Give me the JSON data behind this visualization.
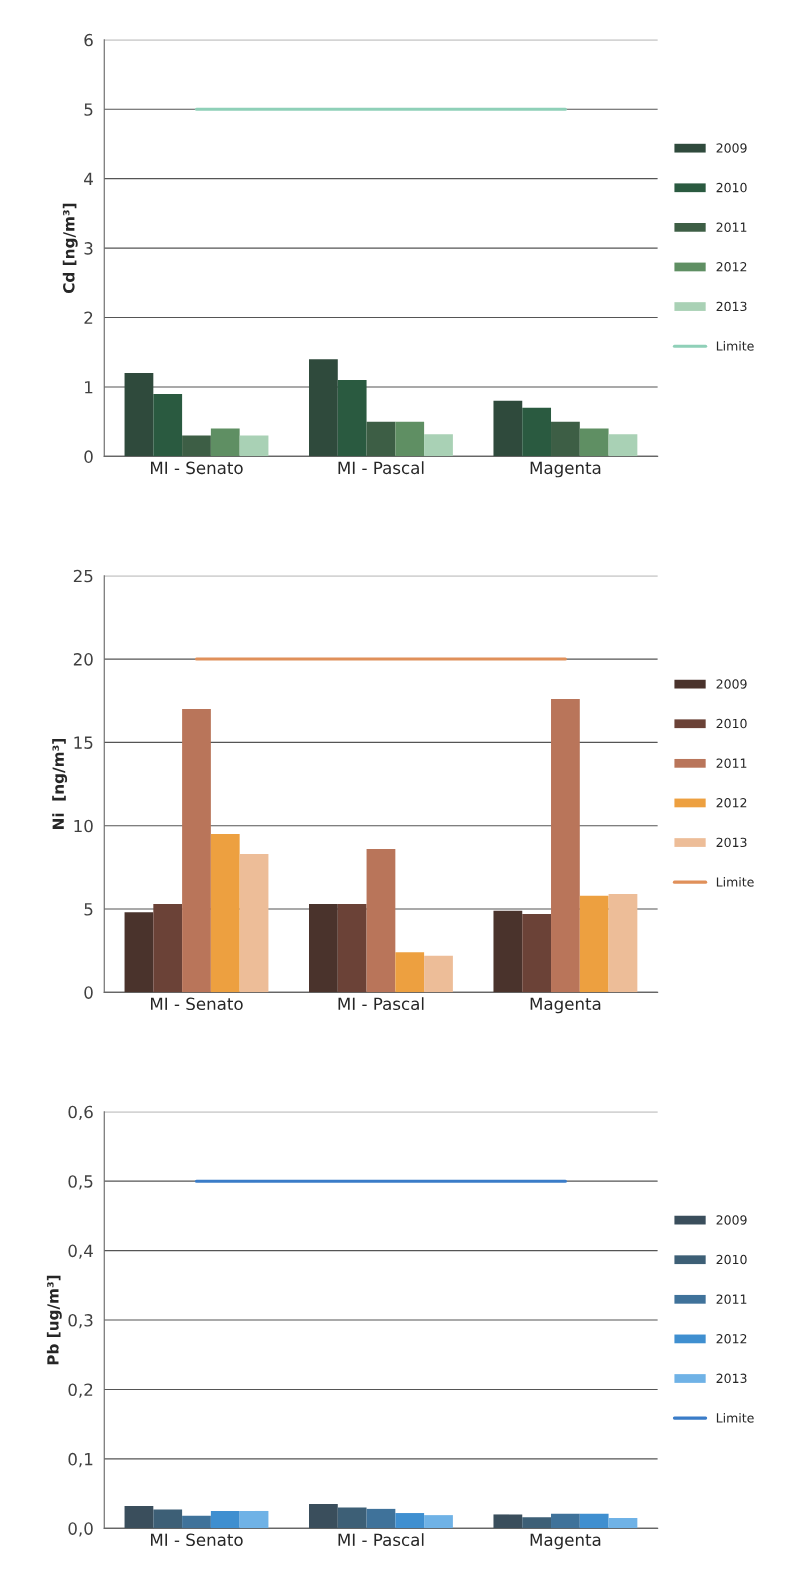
{
  "chart_data": [
    {
      "type": "bar",
      "ylabel": "Cd [ng/m³]",
      "categories": [
        "MI - Senato",
        "MI - Pascal",
        "Magenta"
      ],
      "ylim": [
        0,
        6
      ],
      "yticks": [
        0,
        1,
        2,
        3,
        4,
        5,
        6
      ],
      "grid": "y",
      "legend": "right",
      "series": [
        {
          "name": "2009",
          "color": "#2f4a3c",
          "values": [
            1.2,
            1.4,
            0.8
          ]
        },
        {
          "name": "2010",
          "color": "#2a5a40",
          "values": [
            0.9,
            1.1,
            0.7
          ]
        },
        {
          "name": "2011",
          "color": "#3d5e45",
          "values": [
            0.3,
            0.5,
            0.5
          ]
        },
        {
          "name": "2012",
          "color": "#5f8f63",
          "values": [
            0.4,
            0.5,
            0.4
          ]
        },
        {
          "name": "2013",
          "color": "#a9d1b5",
          "values": [
            0.3,
            0.32,
            0.32
          ]
        },
        {
          "name": "Limite",
          "type": "line",
          "color": "#8fd0b8",
          "values": [
            5,
            5,
            5
          ]
        }
      ]
    },
    {
      "type": "bar",
      "ylabel": "Ni  [ng/m³]",
      "categories": [
        "MI - Senato",
        "MI - Pascal",
        "Magenta"
      ],
      "ylim": [
        0,
        25
      ],
      "yticks": [
        0,
        5,
        10,
        15,
        20,
        25
      ],
      "grid": "y",
      "legend": "right",
      "series": [
        {
          "name": "2009",
          "color": "#4a332c",
          "values": [
            4.8,
            5.3,
            4.9
          ]
        },
        {
          "name": "2010",
          "color": "#6b4237",
          "values": [
            5.3,
            5.3,
            4.7
          ]
        },
        {
          "name": "2011",
          "color": "#b9755a",
          "values": [
            17,
            8.6,
            17.6
          ]
        },
        {
          "name": "2012",
          "color": "#eda040",
          "values": [
            9.5,
            2.4,
            5.8
          ]
        },
        {
          "name": "2013",
          "color": "#edbd98",
          "values": [
            8.3,
            2.2,
            5.9
          ]
        },
        {
          "name": "Limite",
          "type": "line",
          "color": "#e0905a",
          "values": [
            20,
            20,
            20
          ]
        }
      ]
    },
    {
      "type": "bar",
      "ylabel": "Pb [ug/m³]",
      "categories": [
        "MI - Senato",
        "MI - Pascal",
        "Magenta"
      ],
      "ylim": [
        0,
        0.6
      ],
      "yticks": [
        {
          "value": 0,
          "label": "0,0"
        },
        {
          "value": 0.1,
          "label": "0,1"
        },
        {
          "value": 0.2,
          "label": "0,2"
        },
        {
          "value": 0.3,
          "label": "0,3"
        },
        {
          "value": 0.4,
          "label": "0,4"
        },
        {
          "value": 0.5,
          "label": "0,5"
        },
        {
          "value": 0.6,
          "label": "0,6"
        }
      ],
      "grid": "y",
      "legend": "right",
      "series": [
        {
          "name": "2009",
          "color": "#3a4e5c",
          "values": [
            0.032,
            0.035,
            0.02
          ]
        },
        {
          "name": "2010",
          "color": "#3d5f76",
          "values": [
            0.027,
            0.03,
            0.016
          ]
        },
        {
          "name": "2011",
          "color": "#3f729a",
          "values": [
            0.018,
            0.028,
            0.021
          ]
        },
        {
          "name": "2012",
          "color": "#3f8fd0",
          "values": [
            0.025,
            0.022,
            0.021
          ]
        },
        {
          "name": "2013",
          "color": "#6fb2e6",
          "values": [
            0.025,
            0.019,
            0.015
          ]
        },
        {
          "name": "Limite",
          "type": "line",
          "color": "#3a7cc8",
          "values": [
            0.5,
            0.5,
            0.5
          ]
        }
      ]
    }
  ]
}
